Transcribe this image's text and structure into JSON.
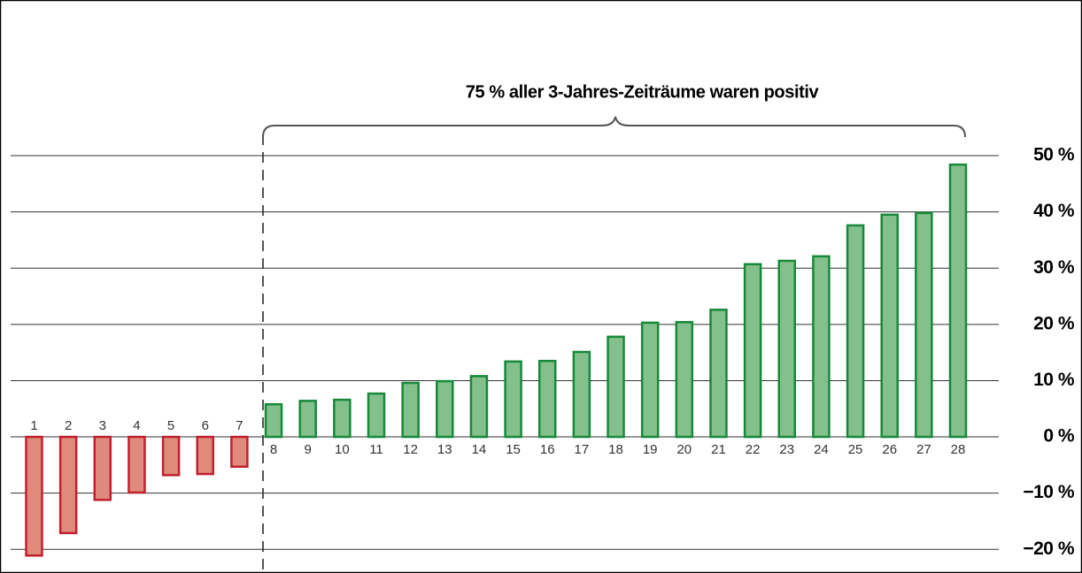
{
  "chart_data": {
    "type": "bar",
    "annotation": "75 % aller 3-Jahres-Zeiträume waren positiv",
    "categories": [
      "1",
      "2",
      "3",
      "4",
      "5",
      "6",
      "7",
      "8",
      "9",
      "10",
      "11",
      "12",
      "13",
      "14",
      "15",
      "16",
      "17",
      "18",
      "19",
      "20",
      "21",
      "22",
      "23",
      "24",
      "25",
      "26",
      "27",
      "28"
    ],
    "values": [
      -21.1,
      -17.1,
      -11.2,
      -9.9,
      -6.8,
      -6.6,
      -5.3,
      5.8,
      6.4,
      6.6,
      7.7,
      9.6,
      9.9,
      10.8,
      13.4,
      13.5,
      15.1,
      17.8,
      20.3,
      20.4,
      22.6,
      30.7,
      31.3,
      32.1,
      37.6,
      39.5,
      39.8,
      48.4
    ],
    "negative_color": "#e08a7c",
    "positive_color": "#84c08c",
    "ylim": [
      -24.2,
      52
    ],
    "yticks": [
      {
        "value": -20,
        "label": "−20 %"
      },
      {
        "value": -10,
        "label": "−10 %"
      },
      {
        "value": 0,
        "label": "0 %"
      },
      {
        "value": 10,
        "label": "10 %"
      },
      {
        "value": 20,
        "label": "20 %"
      },
      {
        "value": 30,
        "label": "30 %"
      },
      {
        "value": 40,
        "label": "40 %"
      },
      {
        "value": 50,
        "label": "50 %"
      }
    ],
    "grid": true
  }
}
